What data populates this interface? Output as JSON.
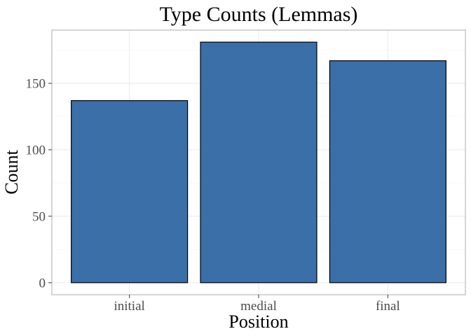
{
  "chart_data": {
    "type": "bar",
    "title": "Type Counts (Lemmas)",
    "xlabel": "Position",
    "ylabel": "Count",
    "categories": [
      "initial",
      "medial",
      "final"
    ],
    "values": [
      137,
      181,
      167
    ],
    "ylim": [
      -9.05,
      190.05
    ],
    "yticks": [
      0,
      50,
      100,
      150
    ],
    "grid": true,
    "legend": "none",
    "bar_color": "#3A6FA8",
    "bar_outline": "#000000"
  }
}
